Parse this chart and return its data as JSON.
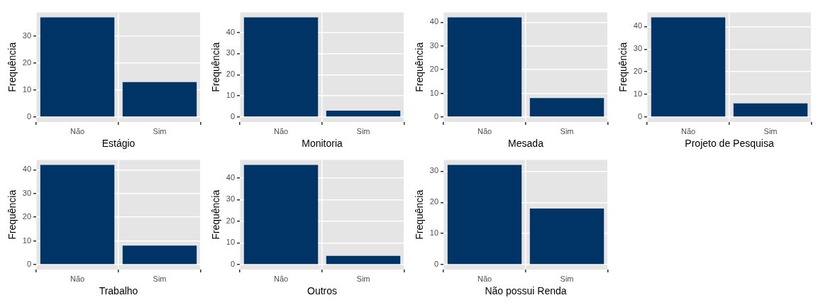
{
  "chart_data": [
    {
      "type": "bar",
      "xlabel": "Estágio",
      "ylabel": "Frequência",
      "categories": [
        "Não",
        "Sim"
      ],
      "values": [
        37,
        13
      ],
      "color": "#003366",
      "ylim": [
        -1.85,
        38.85
      ],
      "yticks": [
        0,
        10,
        20,
        30
      ],
      "grid": true
    },
    {
      "type": "bar",
      "xlabel": "Monitoria",
      "ylabel": "Frequência",
      "categories": [
        "Não",
        "Sim"
      ],
      "values": [
        47,
        3
      ],
      "color": "#003366",
      "ylim": [
        -2.35,
        49.35
      ],
      "yticks": [
        0,
        10,
        20,
        30,
        40
      ],
      "grid": true
    },
    {
      "type": "bar",
      "xlabel": "Mesada",
      "ylabel": "Frequência",
      "categories": [
        "Não",
        "Sim"
      ],
      "values": [
        42,
        8
      ],
      "color": "#003366",
      "ylim": [
        -2.1,
        44.1
      ],
      "yticks": [
        0,
        10,
        20,
        30,
        40
      ],
      "grid": true
    },
    {
      "type": "bar",
      "xlabel": "Projeto de Pesquisa",
      "ylabel": "Frequência",
      "categories": [
        "Não",
        "Sim"
      ],
      "values": [
        44,
        6
      ],
      "color": "#003366",
      "ylim": [
        -2.2,
        46.2
      ],
      "yticks": [
        0,
        10,
        20,
        30,
        40
      ],
      "grid": true
    },
    {
      "type": "bar",
      "xlabel": "Trabalho",
      "ylabel": "Frequência",
      "categories": [
        "Não",
        "Sim"
      ],
      "values": [
        42,
        8
      ],
      "color": "#003366",
      "ylim": [
        -2.1,
        44.1
      ],
      "yticks": [
        0,
        10,
        20,
        30,
        40
      ],
      "grid": true
    },
    {
      "type": "bar",
      "xlabel": "Outros",
      "ylabel": "Frequência",
      "categories": [
        "Não",
        "Sim"
      ],
      "values": [
        46,
        4
      ],
      "color": "#003366",
      "ylim": [
        -2.3,
        48.3
      ],
      "yticks": [
        0,
        10,
        20,
        30,
        40
      ],
      "grid": true
    },
    {
      "type": "bar",
      "xlabel": "Não possui Renda",
      "ylabel": "Frequência",
      "categories": [
        "Não",
        "Sim"
      ],
      "values": [
        32,
        18
      ],
      "color": "#003366",
      "ylim": [
        -1.6,
        33.6
      ],
      "yticks": [
        0,
        10,
        20,
        30
      ],
      "grid": true
    }
  ]
}
